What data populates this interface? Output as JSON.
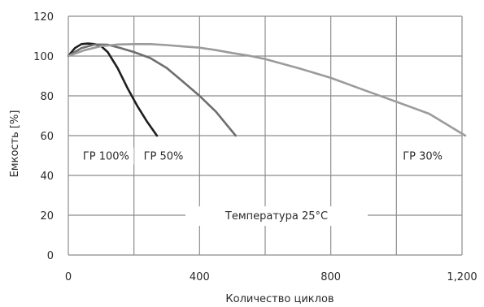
{
  "chart_data": {
    "type": "line",
    "title": "",
    "xlabel": "Количество циклов",
    "ylabel": "Емкость [%]",
    "xlim": [
      0,
      1200
    ],
    "ylim": [
      0,
      120
    ],
    "grid": true,
    "x_ticks": [
      0,
      400,
      800,
      1200
    ],
    "x_tick_labels": [
      "0",
      "400",
      "800",
      "1,200"
    ],
    "y_ticks": [
      0,
      20,
      40,
      60,
      80,
      100,
      120
    ],
    "y_tick_labels": [
      "0",
      "20",
      "40",
      "60",
      "80",
      "100",
      "120"
    ],
    "series": [
      {
        "name": "ГР 100%",
        "color": "#1e1e1e",
        "x": [
          0,
          20,
          40,
          60,
          80,
          100,
          120,
          150,
          180,
          210,
          240,
          270
        ],
        "y": [
          100,
          104,
          106,
          106.3,
          106,
          105,
          102,
          94,
          84,
          75,
          67,
          60
        ]
      },
      {
        "name": "ГР 50%",
        "color": "#6e6e6e",
        "x": [
          0,
          40,
          80,
          120,
          160,
          200,
          250,
          300,
          350,
          400,
          450,
          510
        ],
        "y": [
          100,
          104,
          105.8,
          105.7,
          104,
          102,
          99,
          94,
          87,
          80,
          72,
          60
        ]
      },
      {
        "name": "ГР 30%",
        "color": "#9b9b9b",
        "x": [
          0,
          50,
          100,
          150,
          200,
          250,
          300,
          350,
          400,
          450,
          500,
          550,
          600,
          700,
          800,
          900,
          1000,
          1100,
          1210
        ],
        "y": [
          100,
          103,
          105,
          105.8,
          106,
          106,
          105.5,
          104.8,
          104.2,
          103,
          101.5,
          100.2,
          98.5,
          94,
          89,
          83,
          77,
          71,
          60
        ]
      }
    ],
    "annotation": "Температура 25°C"
  }
}
